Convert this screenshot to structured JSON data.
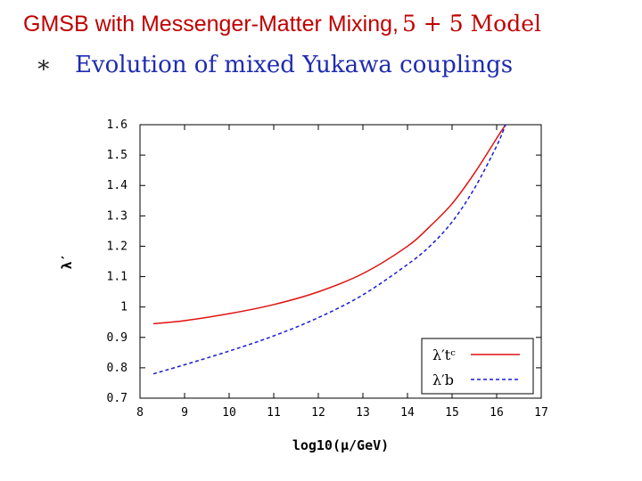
{
  "slide": {
    "title_text": "GMSB with Messenger-Matter Mixing,",
    "title_model": "5 + 5̄  Model",
    "bullet_symbol": "∗",
    "bullet_text": "Evolution of mixed Yukawa couplings"
  },
  "colors": {
    "title": "#c00000",
    "bullet": "#1f2bb0",
    "series_tc": "#e01010",
    "series_b": "#1a1ad8"
  },
  "chart_data": {
    "type": "line",
    "title": "",
    "xlabel": "log10(μ/GeV)",
    "ylabel": "λ′",
    "xlim": [
      8,
      17
    ],
    "ylim": [
      0.7,
      1.6
    ],
    "x_ticks": [
      8,
      9,
      10,
      11,
      12,
      13,
      14,
      15,
      16,
      17
    ],
    "y_ticks": [
      0.7,
      0.8,
      0.9,
      1.0,
      1.1,
      1.2,
      1.3,
      1.4,
      1.5,
      1.6
    ],
    "y_tick_labels": [
      "0.7",
      "0.8",
      "0.9",
      "1",
      "1.1",
      "1.2",
      "1.3",
      "1.4",
      "1.5",
      "1.6"
    ],
    "legend_position": "bottom-right",
    "series": [
      {
        "name": "λ′tᶜ",
        "style": "solid",
        "x": [
          8.3,
          9,
          10,
          11,
          12,
          13,
          14,
          14.5,
          15,
          15.5,
          16,
          16.2
        ],
        "y": [
          0.945,
          0.955,
          0.978,
          1.008,
          1.05,
          1.11,
          1.2,
          1.265,
          1.34,
          1.44,
          1.555,
          1.6
        ]
      },
      {
        "name": "λ′b",
        "style": "dashed",
        "x": [
          8.3,
          9,
          10,
          11,
          12,
          13,
          14,
          14.5,
          15,
          15.5,
          16,
          16.2
        ],
        "y": [
          0.78,
          0.81,
          0.855,
          0.905,
          0.965,
          1.04,
          1.14,
          1.2,
          1.28,
          1.39,
          1.53,
          1.6
        ]
      }
    ]
  }
}
